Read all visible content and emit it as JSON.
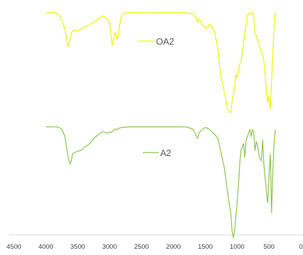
{
  "chart_data": {
    "type": "line",
    "title": "",
    "xlabel": "",
    "ylabel": "",
    "x_reversed": true,
    "xlim": [
      4500,
      0
    ],
    "x_ticks": [
      4500,
      4000,
      3500,
      3000,
      2500,
      2000,
      1500,
      1000,
      500,
      0
    ],
    "x_tick_labels": [
      "4500",
      "4000",
      "3500",
      "3000",
      "2500",
      "2000",
      "1500",
      "1000",
      "500",
      "0"
    ],
    "y_axis_visible": false,
    "grid": false,
    "legend_placement": "inline",
    "series": [
      {
        "name": "OA2",
        "color": "#f2f200",
        "x": [
          4000,
          3900,
          3850,
          3800,
          3750,
          3700,
          3650,
          3620,
          3600,
          3580,
          3550,
          3500,
          3450,
          3400,
          3350,
          3300,
          3250,
          3200,
          3150,
          3100,
          3050,
          3000,
          2960,
          2930,
          2910,
          2880,
          2860,
          2840,
          2820,
          2800,
          2700,
          2600,
          2500,
          2400,
          2300,
          2200,
          2100,
          2000,
          1900,
          1800,
          1700,
          1650,
          1620,
          1600,
          1550,
          1500,
          1470,
          1440,
          1400,
          1350,
          1300,
          1260,
          1200,
          1150,
          1100,
          1080,
          1060,
          1040,
          1020,
          1000,
          980,
          960,
          940,
          920,
          900,
          880,
          860,
          840,
          800,
          780,
          760,
          740,
          720,
          700,
          680,
          650,
          620,
          600,
          580,
          560,
          540,
          520,
          500,
          480,
          460,
          440,
          420,
          400
        ],
        "y": [
          1,
          0.8,
          1.2,
          4,
          12,
          25,
          50,
          40,
          30,
          28,
          26,
          27,
          25,
          22,
          20,
          18,
          15,
          12,
          8,
          6,
          10,
          15,
          48,
          35,
          30,
          40,
          28,
          18,
          8,
          3,
          1,
          0.8,
          1,
          1.2,
          1.5,
          1,
          1,
          1,
          1.2,
          1.5,
          3,
          8,
          15,
          10,
          18,
          22,
          24,
          18,
          20,
          30,
          55,
          90,
          115,
          140,
          145,
          130,
          118,
          108,
          90,
          95,
          85,
          75,
          72,
          60,
          45,
          30,
          20,
          5,
          1,
          3,
          1,
          5,
          30,
          35,
          40,
          50,
          58,
          60,
          70,
          92,
          115,
          130,
          120,
          140,
          100,
          60,
          20,
          0
        ]
      },
      {
        "name": "A2",
        "color": "#8bc34a",
        "x": [
          4000,
          3900,
          3850,
          3800,
          3750,
          3700,
          3650,
          3620,
          3600,
          3580,
          3550,
          3500,
          3450,
          3400,
          3350,
          3300,
          3250,
          3200,
          3150,
          3100,
          3050,
          3000,
          2960,
          2930,
          2910,
          2880,
          2860,
          2840,
          2820,
          2800,
          2700,
          2600,
          2500,
          2400,
          2300,
          2200,
          2100,
          2000,
          1900,
          1800,
          1700,
          1650,
          1620,
          1600,
          1550,
          1500,
          1470,
          1440,
          1400,
          1350,
          1300,
          1260,
          1200,
          1150,
          1100,
          1080,
          1060,
          1040,
          1020,
          1000,
          980,
          960,
          940,
          920,
          900,
          880,
          860,
          840,
          800,
          780,
          760,
          740,
          720,
          700,
          680,
          650,
          620,
          600,
          580,
          560,
          540,
          520,
          500,
          480,
          460,
          440,
          420,
          400
        ],
        "y": [
          1,
          1.2,
          0.8,
          2,
          4,
          15,
          45,
          55,
          50,
          40,
          38,
          36,
          35,
          30,
          28,
          24,
          18,
          14,
          10,
          8,
          10,
          9,
          8,
          6,
          4,
          5,
          3,
          3,
          2,
          2,
          1,
          1,
          1,
          1,
          1,
          1,
          1,
          1,
          1,
          1,
          4,
          12,
          18,
          10,
          5,
          2,
          3,
          4,
          8,
          12,
          18,
          35,
          60,
          95,
          125,
          150,
          160,
          150,
          130,
          110,
          85,
          55,
          35,
          30,
          25,
          45,
          20,
          15,
          5,
          15,
          5,
          8,
          35,
          22,
          28,
          45,
          50,
          20,
          55,
          75,
          95,
          110,
          70,
          40,
          125,
          65,
          25,
          5
        ]
      }
    ]
  }
}
